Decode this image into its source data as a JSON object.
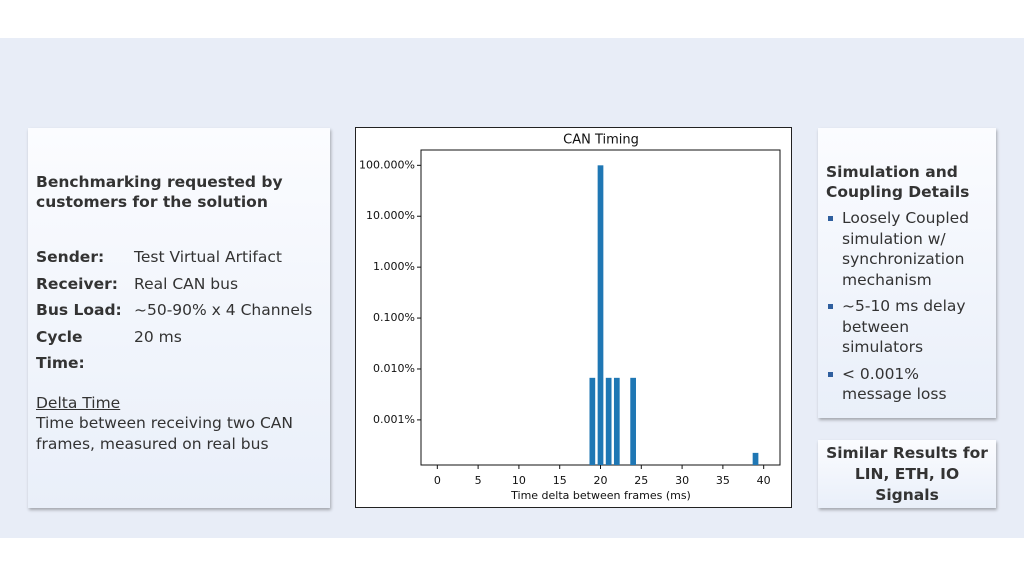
{
  "left_panel": {
    "heading": "Benchmarking requested by customers for the solution",
    "fields": [
      {
        "label": "Sender:",
        "value": "Test Virtual Artifact"
      },
      {
        "label": "Receiver:",
        "value": "Real CAN bus"
      },
      {
        "label": "Bus Load:",
        "value": "~50-90% x 4 Channels"
      },
      {
        "label": "Cycle Time:",
        "value": "20 ms"
      }
    ],
    "delta_title": "Delta Time",
    "delta_text": "Time between receiving two CAN frames, measured on real bus"
  },
  "chart_data": {
    "type": "bar",
    "title": "CAN Timing",
    "x_label": "Time delta between frames (ms)",
    "x": [
      19,
      20,
      21,
      22,
      24,
      39
    ],
    "values": [
      0.0067,
      100,
      0.0067,
      0.0067,
      0.0067,
      0.000225
    ],
    "color": "#1f77b4",
    "yscale": "log",
    "grid": false,
    "xlim": [
      -2,
      42
    ],
    "xticks": [
      0,
      5,
      10,
      15,
      20,
      25,
      30,
      35,
      40
    ],
    "ylim": [
      0.00013,
      200
    ],
    "yticks": [
      {
        "value": 100,
        "label": "100.000%"
      },
      {
        "value": 10,
        "label": "10.000%"
      },
      {
        "value": 1,
        "label": "1.000%"
      },
      {
        "value": 0.1,
        "label": "0.100%"
      },
      {
        "value": 0.01,
        "label": "0.010%"
      },
      {
        "value": 0.001,
        "label": "0.001%"
      }
    ]
  },
  "right_panel": {
    "heading": "Simulation and Coupling Details",
    "bullets": [
      "Loosely Coupled simulation w/ synchronization mechanism",
      "~5-10 ms delay between simulators",
      "< 0.001% message loss"
    ]
  },
  "bottom_box": {
    "text": "Similar Results for LIN, ETH, IO Signals"
  }
}
